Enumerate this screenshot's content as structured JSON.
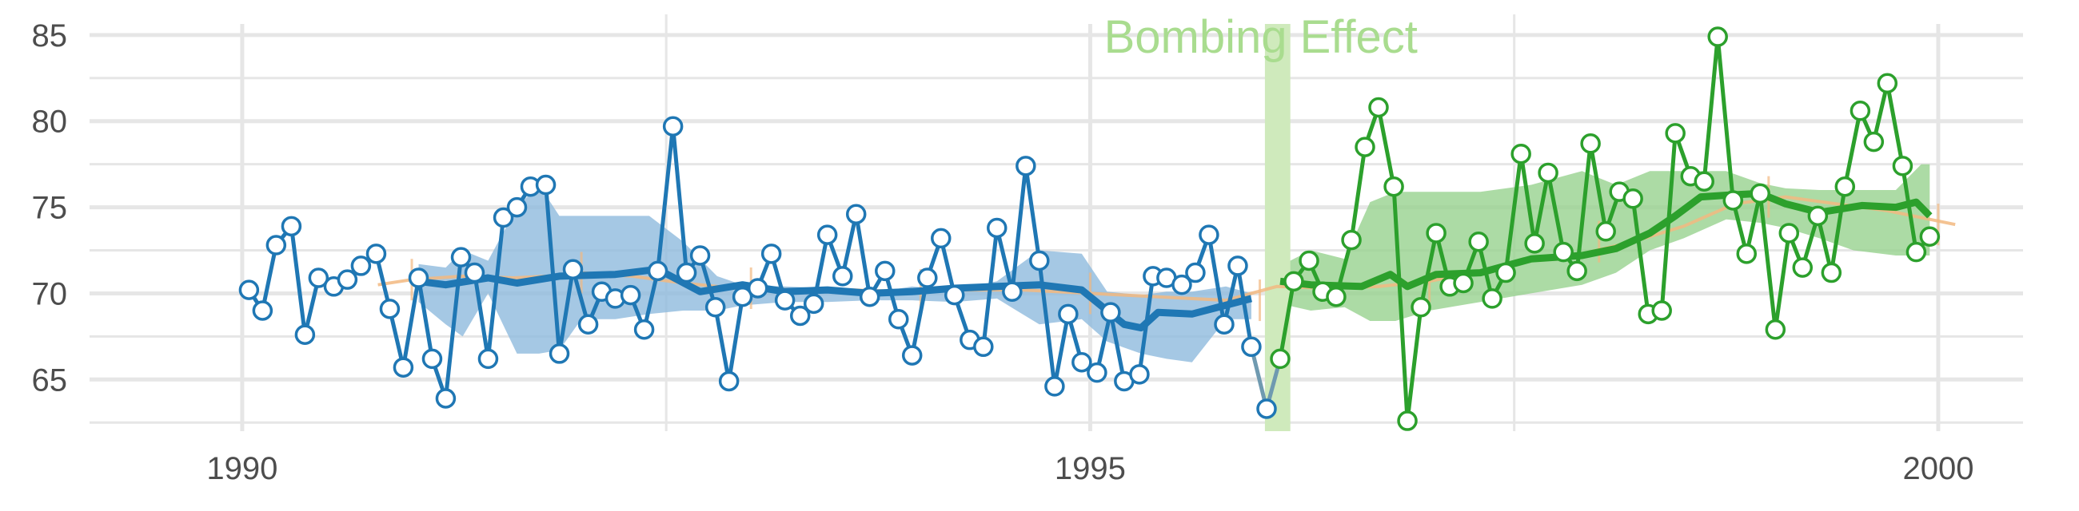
{
  "chart_data": {
    "type": "line",
    "title": "",
    "xlabel": "",
    "ylabel": "",
    "xlim": [
      1989.1,
      2000.5
    ],
    "ylim": [
      62,
      86.2
    ],
    "grid": true,
    "x_ticks": [
      {
        "value": 1990,
        "label": "1990"
      },
      {
        "value": 1995,
        "label": "1995"
      },
      {
        "value": 2000,
        "label": "2000"
      }
    ],
    "y_ticks": [
      {
        "value": 65,
        "label": "65"
      },
      {
        "value": 70,
        "label": "70"
      },
      {
        "value": 75,
        "label": "75"
      },
      {
        "value": 80,
        "label": "80"
      },
      {
        "value": 85,
        "label": "85"
      }
    ],
    "colors": {
      "before": "#1f77b4",
      "before_band": "#8fbadd",
      "after": "#2ca02c",
      "after_band": "#97d28e",
      "trend": "#f2b880",
      "event_band": "#cfeabc",
      "annotation": "#a9dc8f",
      "grid": "#e6e6e6"
    },
    "event": {
      "label": "Bombing Effect",
      "x_start": 1996.03,
      "x_end": 1996.18,
      "label_x": 1996.1,
      "label_y": 84.9
    },
    "before": {
      "x": [
        1990.04,
        1990.12,
        1990.2,
        1990.29,
        1990.37,
        1990.45,
        1990.54,
        1990.62,
        1990.7,
        1990.79,
        1990.87,
        1990.95,
        1991.04,
        1991.12,
        1991.2,
        1991.29,
        1991.37,
        1991.45,
        1991.54,
        1991.62,
        1991.7,
        1991.79,
        1991.87,
        1991.95,
        1992.04,
        1992.12,
        1992.2,
        1992.29,
        1992.37,
        1992.45,
        1992.54,
        1992.62,
        1992.7,
        1992.79,
        1992.87,
        1992.95,
        1993.04,
        1993.12,
        1993.2,
        1993.29,
        1993.37,
        1993.45,
        1993.54,
        1993.62,
        1993.7,
        1993.79,
        1993.87,
        1993.95,
        1994.04,
        1994.12,
        1994.2,
        1994.29,
        1994.37,
        1994.45,
        1994.54,
        1994.62,
        1994.7,
        1994.79,
        1994.87,
        1994.95,
        1995.04,
        1995.12,
        1995.2,
        1995.29,
        1995.37,
        1995.45,
        1995.54,
        1995.62,
        1995.7,
        1995.79,
        1995.87,
        1995.95
      ],
      "values": [
        70.2,
        69.0,
        72.8,
        73.9,
        67.6,
        70.9,
        70.4,
        70.8,
        71.6,
        72.3,
        69.1,
        65.7,
        70.9,
        66.2,
        63.9,
        72.1,
        71.2,
        66.2,
        74.4,
        75.0,
        76.2,
        76.3,
        66.5,
        71.4,
        68.2,
        70.1,
        69.7,
        69.9,
        67.9,
        71.3,
        79.7,
        71.2,
        72.2,
        69.2,
        64.9,
        69.8,
        70.3,
        72.3,
        69.6,
        68.7,
        69.4,
        73.4,
        71.0,
        74.6,
        69.8,
        71.3,
        68.5,
        66.4,
        70.9,
        73.2,
        69.9,
        67.3,
        66.9,
        73.8,
        70.1,
        77.4,
        71.9,
        64.6,
        68.8,
        66.0,
        65.4,
        68.9,
        64.9,
        65.3,
        71.0,
        70.9,
        70.5,
        71.2,
        73.4,
        68.2,
        71.6,
        66.9
      ]
    },
    "transition": {
      "x": [
        1995.95,
        1996.04,
        1996.12
      ],
      "values": [
        66.9,
        63.3,
        66.2
      ]
    },
    "after": {
      "x": [
        1996.12,
        1996.2,
        1996.29,
        1996.37,
        1996.45,
        1996.54,
        1996.62,
        1996.7,
        1996.79,
        1996.87,
        1996.95,
        1997.04,
        1997.12,
        1997.2,
        1997.29,
        1997.37,
        1997.45,
        1997.54,
        1997.62,
        1997.7,
        1997.79,
        1997.87,
        1997.95,
        1998.04,
        1998.12,
        1998.2,
        1998.29,
        1998.37,
        1998.45,
        1998.54,
        1998.62,
        1998.7,
        1998.79,
        1998.87,
        1998.95,
        1999.04,
        1999.12,
        1999.2,
        1999.29,
        1999.37,
        1999.45,
        1999.54,
        1999.62,
        1999.7,
        1999.79,
        1999.87,
        1999.95
      ],
      "values": [
        66.2,
        70.7,
        71.9,
        70.1,
        69.8,
        73.1,
        78.5,
        80.8,
        76.2,
        62.6,
        69.2,
        73.5,
        70.4,
        70.6,
        73.0,
        69.7,
        71.2,
        78.1,
        72.9,
        77.0,
        72.4,
        71.3,
        78.7,
        73.6,
        75.9,
        75.5,
        68.8,
        69.0,
        79.3,
        76.8,
        76.5,
        84.9,
        75.4,
        72.3,
        75.8,
        67.9,
        73.5,
        71.5,
        74.5,
        71.2,
        76.2,
        80.6,
        78.8,
        82.2,
        77.4,
        72.4,
        73.3
      ]
    },
    "before_rolling": {
      "x": [
        1991.04,
        1991.2,
        1991.45,
        1991.62,
        1991.87,
        1992.2,
        1992.45,
        1992.7,
        1992.95,
        1993.2,
        1993.45,
        1993.7,
        1993.95,
        1994.2,
        1994.45,
        1994.7,
        1994.95,
        1995.2,
        1995.3,
        1995.4,
        1995.6,
        1995.95
      ],
      "values": [
        70.7,
        70.5,
        70.9,
        70.6,
        71.0,
        71.1,
        71.4,
        70.1,
        70.5,
        70.1,
        70.2,
        70.0,
        70.1,
        70.3,
        70.4,
        70.5,
        70.2,
        68.2,
        68.0,
        68.9,
        68.8,
        69.7
      ]
    },
    "before_band": {
      "x": [
        1991.04,
        1991.2,
        1991.3,
        1991.45,
        1991.62,
        1991.75,
        1991.87,
        1992.0,
        1992.2,
        1992.4,
        1992.6,
        1992.8,
        1992.95,
        1993.2,
        1993.45,
        1993.7,
        1993.95,
        1994.2,
        1994.45,
        1994.7,
        1994.95,
        1995.1,
        1995.3,
        1995.45,
        1995.6,
        1995.8,
        1995.95
      ],
      "upper": [
        71.7,
        71.5,
        72.5,
        71.9,
        75.0,
        76.3,
        74.5,
        74.5,
        74.5,
        74.5,
        73.0,
        71.0,
        70.5,
        70.4,
        70.3,
        70.0,
        70.4,
        70.2,
        70.7,
        72.5,
        72.3,
        70.1,
        69.9,
        70.1,
        70.1,
        70.4,
        70.0
      ],
      "lower": [
        69.5,
        68.2,
        67.5,
        70.0,
        66.5,
        66.5,
        66.7,
        68.5,
        68.5,
        68.8,
        69.0,
        69.0,
        69.3,
        69.5,
        69.5,
        69.6,
        69.6,
        69.5,
        69.7,
        68.2,
        68.5,
        67.2,
        66.5,
        66.2,
        66.0,
        68.5,
        68.5
      ]
    },
    "after_rolling": {
      "x": [
        1996.12,
        1996.3,
        1996.6,
        1996.77,
        1996.87,
        1997.04,
        1997.3,
        1997.6,
        1997.9,
        1998.1,
        1998.3,
        1998.45,
        1998.6,
        1998.75,
        1998.95,
        1999.1,
        1999.3,
        1999.55,
        1999.75,
        1999.87,
        1999.95
      ],
      "values": [
        70.7,
        70.5,
        70.4,
        71.1,
        70.4,
        71.1,
        71.2,
        72.0,
        72.2,
        72.6,
        73.5,
        74.5,
        75.6,
        75.7,
        75.8,
        75.2,
        74.7,
        75.1,
        75.0,
        75.3,
        74.5
      ]
    },
    "after_band": {
      "x": [
        1996.12,
        1996.3,
        1996.5,
        1996.65,
        1996.8,
        1997.0,
        1997.3,
        1997.6,
        1997.9,
        1998.1,
        1998.3,
        1998.5,
        1998.75,
        1998.95,
        1999.1,
        1999.3,
        1999.5,
        1999.75,
        1999.9,
        1999.95
      ],
      "upper": [
        71.6,
        72.5,
        72.0,
        75.3,
        75.9,
        75.9,
        75.9,
        76.3,
        77.1,
        76.3,
        77.1,
        77.1,
        77.1,
        76.4,
        76.1,
        76.0,
        76.0,
        76.0,
        77.5,
        77.5
      ],
      "lower": [
        69.4,
        69.0,
        69.2,
        68.4,
        68.4,
        69.0,
        69.5,
        70.0,
        70.5,
        71.2,
        72.5,
        73.2,
        74.3,
        74.1,
        73.8,
        73.2,
        72.5,
        72.2,
        72.2,
        72.2
      ]
    },
    "trend": {
      "x": [
        1990.8,
        1991.0,
        1991.3,
        1991.6,
        1991.8,
        1992.0,
        1992.3,
        1992.6,
        1992.9,
        1993.3,
        1993.6,
        1993.9,
        1994.2,
        1994.6,
        1995.0,
        1995.4,
        1995.8,
        1996.1,
        1996.4,
        1996.7,
        1997.0,
        1997.3,
        1997.6,
        1997.9,
        1998.2,
        1998.5,
        1998.8,
        1999.1,
        1999.4,
        1999.7,
        2000.1
      ],
      "values": [
        70.5,
        70.8,
        71.0,
        70.9,
        71.0,
        71.2,
        71.0,
        70.6,
        70.3,
        70.2,
        70.2,
        70.1,
        70.2,
        70.2,
        70.0,
        69.8,
        69.6,
        70.4,
        70.3,
        70.4,
        70.7,
        71.3,
        71.9,
        72.3,
        73.0,
        73.9,
        75.2,
        75.6,
        75.2,
        74.8,
        74.0
      ]
    },
    "trend_ticks": {
      "x": [
        1991.0,
        1992.0,
        1993.0,
        1994.0,
        1995.0,
        1996.0,
        1997.0,
        1998.0,
        1999.0,
        2000.0
      ],
      "values": [
        70.8,
        71.2,
        70.3,
        70.2,
        70.0,
        69.6,
        70.7,
        73.0,
        75.6,
        74.0
      ]
    }
  }
}
